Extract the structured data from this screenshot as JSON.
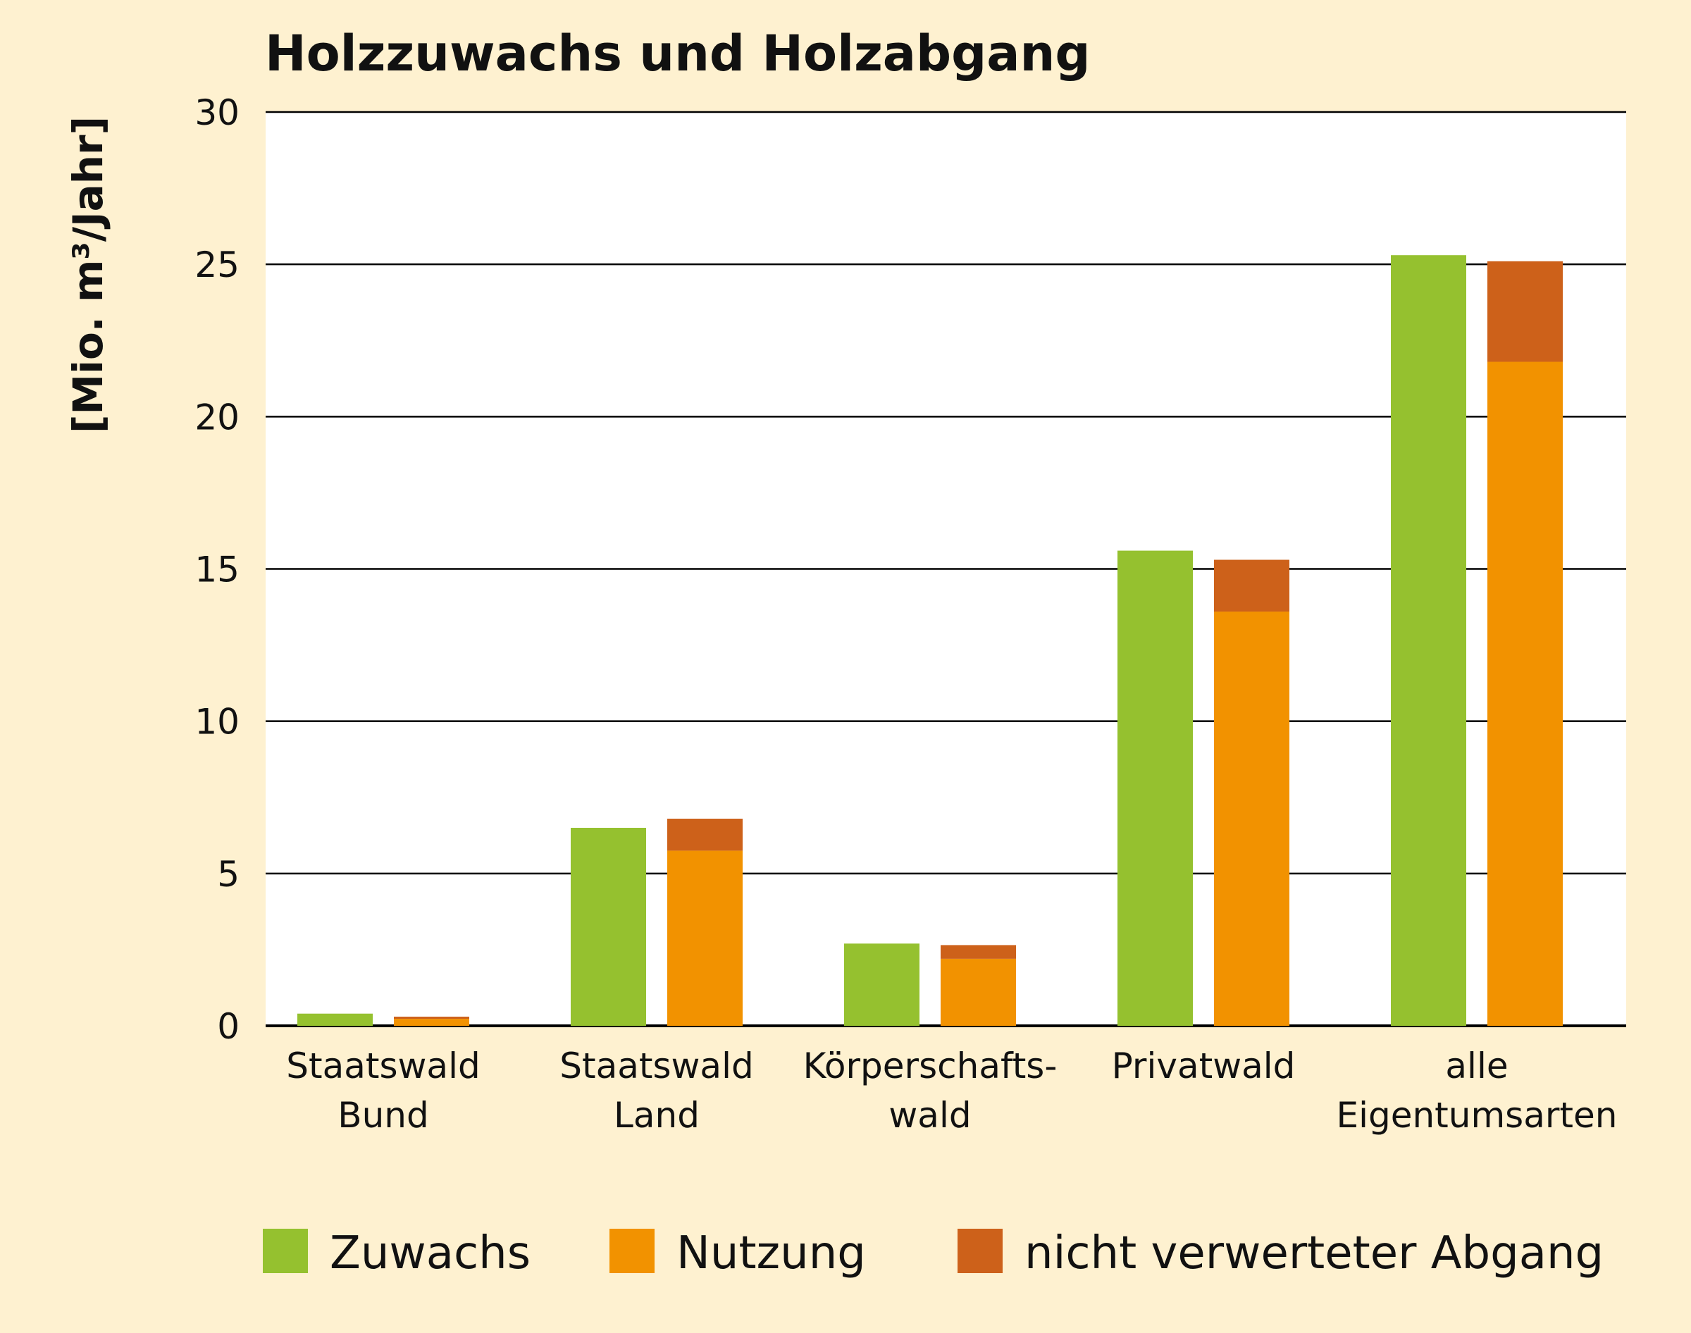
{
  "chart_data": {
    "type": "bar",
    "title": "Holzzuwachs und Holzabgang",
    "xlabel": "",
    "ylabel": "[Mio. m³/Jahr]",
    "ylim": [
      0,
      30
    ],
    "yticks": [
      0,
      5,
      10,
      15,
      20,
      25,
      30
    ],
    "grid": true,
    "legend_position": "bottom",
    "categories": [
      [
        "Staatswald",
        "Bund"
      ],
      [
        "Staatswald",
        "Land"
      ],
      [
        "Körperschafts-",
        "wald"
      ],
      [
        "Privatwald"
      ],
      [
        "alle",
        "Eigentumsarten"
      ]
    ],
    "series": [
      {
        "name": "Zuwachs",
        "color": "#95c12f",
        "stack": "a",
        "values": [
          0.4,
          6.5,
          2.7,
          15.6,
          25.3
        ]
      },
      {
        "name": "Nutzung",
        "color": "#f29200",
        "stack": "b",
        "values": [
          0.23,
          5.75,
          2.2,
          13.6,
          21.8
        ]
      },
      {
        "name": "nicht verwerteter Abgang",
        "color": "#cd611a",
        "stack": "b",
        "values": [
          0.07,
          1.05,
          0.45,
          1.7,
          3.3
        ]
      }
    ],
    "colors": {
      "background": "#fef1d0",
      "plot": "#ffffff",
      "grid": "#000000"
    }
  }
}
